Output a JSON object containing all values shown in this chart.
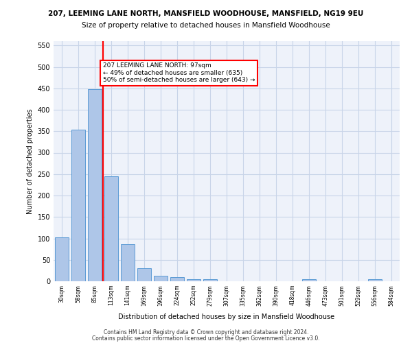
{
  "title_line1": "207, LEEMING LANE NORTH, MANSFIELD WOODHOUSE, MANSFIELD, NG19 9EU",
  "title_line2": "Size of property relative to detached houses in Mansfield Woodhouse",
  "xlabel": "Distribution of detached houses by size in Mansfield Woodhouse",
  "ylabel": "Number of detached properties",
  "footer_line1": "Contains HM Land Registry data © Crown copyright and database right 2024.",
  "footer_line2": "Contains public sector information licensed under the Open Government Licence v3.0.",
  "categories": [
    "30sqm",
    "58sqm",
    "85sqm",
    "113sqm",
    "141sqm",
    "169sqm",
    "196sqm",
    "224sqm",
    "252sqm",
    "279sqm",
    "307sqm",
    "335sqm",
    "362sqm",
    "390sqm",
    "418sqm",
    "446sqm",
    "473sqm",
    "501sqm",
    "529sqm",
    "556sqm",
    "584sqm"
  ],
  "values": [
    103,
    353,
    448,
    245,
    87,
    30,
    13,
    9,
    5,
    5,
    0,
    0,
    0,
    0,
    0,
    5,
    0,
    0,
    0,
    5,
    0
  ],
  "bar_color": "#aec6e8",
  "bar_edge_color": "#5b9bd5",
  "grid_color": "#c8d4e8",
  "background_color": "#eef2fa",
  "annotation_text": "207 LEEMING LANE NORTH: 97sqm\n← 49% of detached houses are smaller (635)\n50% of semi-detached houses are larger (643) →",
  "annotation_box_color": "white",
  "annotation_box_edge": "red",
  "redline_x": 2,
  "ylim": [
    0,
    560
  ],
  "yticks": [
    0,
    50,
    100,
    150,
    200,
    250,
    300,
    350,
    400,
    450,
    500,
    550
  ]
}
